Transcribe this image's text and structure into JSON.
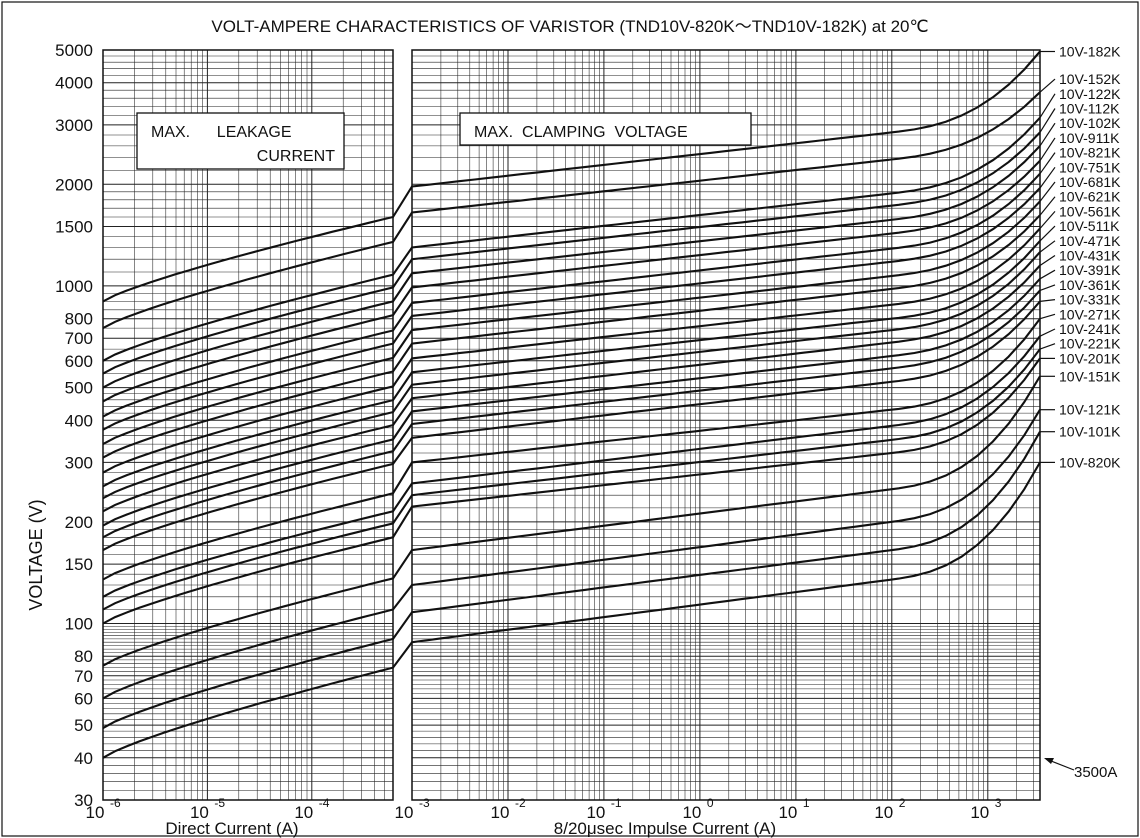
{
  "chart_data": {
    "type": "line",
    "title": "VOLT-AMPERE  CHARACTERISTICS OF VARISTOR (TND10V-820K〜TND10V-182K)  at 20℃",
    "ylabel": "VOLTAGE (V)",
    "y_scale": "log",
    "ylim": [
      30,
      5000
    ],
    "y_ticks": [
      30,
      40,
      50,
      60,
      70,
      80,
      100,
      150,
      200,
      300,
      400,
      500,
      600,
      700,
      800,
      1000,
      1500,
      2000,
      3000,
      4000,
      5000
    ],
    "grid": true,
    "panels": [
      {
        "name": "leakage",
        "xlabel": "Direct  Current (A)",
        "x_scale": "log",
        "xlim": [
          1e-06,
          0.0006
        ],
        "x_ticks": [
          {
            "base": "10",
            "exp": "-6"
          },
          {
            "base": "10",
            "exp": "-5"
          },
          {
            "base": "10",
            "exp": "-4"
          }
        ],
        "box_label_lines": [
          "MAX.      LEAKAGE",
          "CURRENT"
        ]
      },
      {
        "name": "clamping",
        "xlabel": "8/20μsec  Impulse  Current (A)",
        "x_scale": "log",
        "xlim": [
          0.001,
          3500
        ],
        "x_ticks": [
          {
            "base": "10",
            "exp": "-3"
          },
          {
            "base": "10",
            "exp": "-2"
          },
          {
            "base": "10",
            "exp": "-1"
          },
          {
            "base": "10",
            "exp": "0"
          },
          {
            "base": "10",
            "exp": "1"
          },
          {
            "base": "10",
            "exp": "2"
          },
          {
            "base": "10",
            "exp": "3"
          }
        ],
        "box_label_lines": [
          "MAX.  CLAMPING  VOLTAGE"
        ]
      }
    ],
    "annotation": "3500A",
    "series": [
      {
        "name": "10V-820K",
        "leak_start": 40,
        "leak_end": 74,
        "clamp_start": 88,
        "clamp_mid": 135,
        "clamp_end": 300
      },
      {
        "name": "10V-101K",
        "leak_start": 49,
        "leak_end": 90,
        "clamp_start": 108,
        "clamp_mid": 165,
        "clamp_end": 370
      },
      {
        "name": "10V-121K",
        "leak_start": 60,
        "leak_end": 110,
        "clamp_start": 130,
        "clamp_mid": 200,
        "clamp_end": 430
      },
      {
        "name": "10V-151K",
        "leak_start": 75,
        "leak_end": 136,
        "clamp_start": 165,
        "clamp_mid": 250,
        "clamp_end": 540
      },
      {
        "name": "10V-201K",
        "leak_start": 100,
        "leak_end": 180,
        "clamp_start": 222,
        "clamp_mid": 320,
        "clamp_end": 610
      },
      {
        "name": "10V-221K",
        "leak_start": 110,
        "leak_end": 198,
        "clamp_start": 240,
        "clamp_mid": 350,
        "clamp_end": 650
      },
      {
        "name": "10V-241K",
        "leak_start": 120,
        "leak_end": 215,
        "clamp_start": 260,
        "clamp_mid": 385,
        "clamp_end": 710
      },
      {
        "name": "10V-271K",
        "leak_start": 135,
        "leak_end": 243,
        "clamp_start": 300,
        "clamp_mid": 430,
        "clamp_end": 800
      },
      {
        "name": "10V-331K",
        "leak_start": 165,
        "leak_end": 297,
        "clamp_start": 355,
        "clamp_mid": 520,
        "clamp_end": 900
      },
      {
        "name": "10V-361K",
        "leak_start": 180,
        "leak_end": 324,
        "clamp_start": 390,
        "clamp_mid": 570,
        "clamp_end": 970
      },
      {
        "name": "10V-391K",
        "leak_start": 195,
        "leak_end": 351,
        "clamp_start": 425,
        "clamp_mid": 620,
        "clamp_end": 1050
      },
      {
        "name": "10V-431K",
        "leak_start": 215,
        "leak_end": 387,
        "clamp_start": 465,
        "clamp_mid": 680,
        "clamp_end": 1150
      },
      {
        "name": "10V-471K",
        "leak_start": 235,
        "leak_end": 423,
        "clamp_start": 510,
        "clamp_mid": 740,
        "clamp_end": 1260
      },
      {
        "name": "10V-511K",
        "leak_start": 255,
        "leak_end": 459,
        "clamp_start": 555,
        "clamp_mid": 800,
        "clamp_end": 1360
      },
      {
        "name": "10V-561K",
        "leak_start": 280,
        "leak_end": 504,
        "clamp_start": 610,
        "clamp_mid": 880,
        "clamp_end": 1480
      },
      {
        "name": "10V-621K",
        "leak_start": 310,
        "leak_end": 558,
        "clamp_start": 675,
        "clamp_mid": 980,
        "clamp_end": 1620
      },
      {
        "name": "10V-681K",
        "leak_start": 340,
        "leak_end": 612,
        "clamp_start": 740,
        "clamp_mid": 1070,
        "clamp_end": 1780
      },
      {
        "name": "10V-751K",
        "leak_start": 375,
        "leak_end": 675,
        "clamp_start": 815,
        "clamp_mid": 1180,
        "clamp_end": 1950
      },
      {
        "name": "10V-821K",
        "leak_start": 410,
        "leak_end": 738,
        "clamp_start": 890,
        "clamp_mid": 1290,
        "clamp_end": 2150
      },
      {
        "name": "10V-911K",
        "leak_start": 455,
        "leak_end": 819,
        "clamp_start": 990,
        "clamp_mid": 1430,
        "clamp_end": 2350
      },
      {
        "name": "10V-102K",
        "leak_start": 500,
        "leak_end": 900,
        "clamp_start": 1090,
        "clamp_mid": 1570,
        "clamp_end": 2600
      },
      {
        "name": "10V-112K",
        "leak_start": 550,
        "leak_end": 990,
        "clamp_start": 1200,
        "clamp_mid": 1730,
        "clamp_end": 2850
      },
      {
        "name": "10V-122K",
        "leak_start": 600,
        "leak_end": 1080,
        "clamp_start": 1300,
        "clamp_mid": 1880,
        "clamp_end": 3150
      },
      {
        "name": "10V-152K",
        "leak_start": 750,
        "leak_end": 1350,
        "clamp_start": 1650,
        "clamp_mid": 2370,
        "clamp_end": 3750
      },
      {
        "name": "10V-182K",
        "leak_start": 900,
        "leak_end": 1600,
        "clamp_start": 1970,
        "clamp_mid": 2850,
        "clamp_end": 4950
      }
    ]
  }
}
